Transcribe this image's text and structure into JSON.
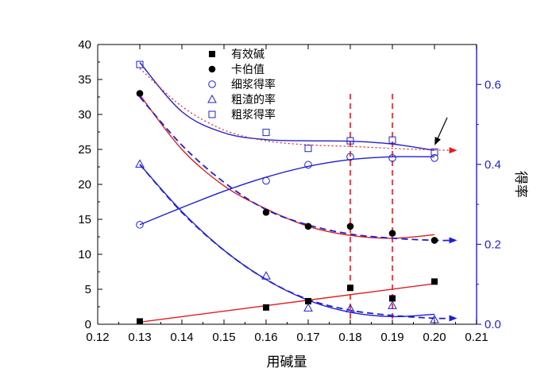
{
  "chart_data": {
    "type": "scatter",
    "xlabel": "用碱量",
    "ylabel_right": "得率",
    "xlim": [
      0.12,
      0.21
    ],
    "xticks": [
      "0.12",
      "0.13",
      "0.14",
      "0.15",
      "0.16",
      "0.17",
      "0.18",
      "0.19",
      "0.20",
      "0.21"
    ],
    "ylim_left": [
      0,
      40
    ],
    "yticks_left": [
      "0",
      "5",
      "10",
      "15",
      "20",
      "25",
      "30",
      "35",
      "40"
    ],
    "ylim_right": [
      0,
      0.7
    ],
    "yticks_right": [
      "0.0",
      "0.2",
      "0.4",
      "0.6"
    ],
    "vlines_x": [
      0.18,
      0.19
    ],
    "legend_position": "top-center",
    "colors": {
      "left_axis": "#000000",
      "right_axis": "#1f1fd6",
      "red": "#e01e1e",
      "blue": "#1f1fd6",
      "black": "#000000"
    },
    "series": [
      {
        "name": "有效碱",
        "axis": "left",
        "marker": "filled-square",
        "color": "#000000",
        "x": [
          0.13,
          0.16,
          0.17,
          0.18,
          0.19,
          0.2
        ],
        "y": [
          0.4,
          2.4,
          3.3,
          5.2,
          3.7,
          6.1
        ]
      },
      {
        "name": "卡伯值",
        "axis": "left",
        "marker": "filled-circle",
        "color": "#000000",
        "x": [
          0.13,
          0.16,
          0.17,
          0.18,
          0.19,
          0.2
        ],
        "y": [
          33.0,
          16.0,
          14.0,
          14.0,
          13.0,
          12.0
        ]
      },
      {
        "name": "细浆得率",
        "axis": "right",
        "marker": "open-circle",
        "color": "#1f1fd6",
        "x": [
          0.13,
          0.16,
          0.17,
          0.18,
          0.19,
          0.2
        ],
        "y": [
          0.249,
          0.359,
          0.399,
          0.419,
          0.416,
          0.416
        ]
      },
      {
        "name": "粗渣的率",
        "axis": "right",
        "marker": "open-triangle",
        "color": "#1f1fd6",
        "x": [
          0.13,
          0.16,
          0.17,
          0.18,
          0.19,
          0.2
        ],
        "y": [
          0.401,
          0.121,
          0.041,
          0.039,
          0.047,
          0.012
        ]
      },
      {
        "name": "粗浆得率",
        "axis": "right",
        "marker": "open-square",
        "color": "#1f1fd6",
        "x": [
          0.13,
          0.16,
          0.17,
          0.18,
          0.19,
          0.2
        ],
        "y": [
          0.65,
          0.48,
          0.44,
          0.459,
          0.461,
          0.431
        ]
      }
    ],
    "fit_curves": [
      {
        "axis": "left",
        "color": "#e01e1e",
        "style": "solid",
        "x": [
          0.13,
          0.2
        ],
        "y": [
          0.3,
          5.8
        ]
      },
      {
        "axis": "left",
        "color": "#e01e1e",
        "style": "solid",
        "x": [
          0.13,
          0.14,
          0.15,
          0.16,
          0.17,
          0.18,
          0.19,
          0.2
        ],
        "y": [
          32.8,
          25.0,
          19.8,
          16.5,
          14.0,
          12.7,
          12.3,
          12.8
        ]
      },
      {
        "axis": "left",
        "color": "#1f1fd6",
        "style": "dashed",
        "x": [
          0.13,
          0.14,
          0.15,
          0.16,
          0.17,
          0.18,
          0.19,
          0.2,
          0.205
        ],
        "y": [
          32.5,
          25.6,
          20.3,
          16.4,
          14.2,
          12.9,
          12.3,
          12.0,
          12.0
        ]
      },
      {
        "axis": "right",
        "color": "#1f1fd6",
        "style": "solid",
        "x": [
          0.13,
          0.14,
          0.15,
          0.16,
          0.17,
          0.18,
          0.19,
          0.2
        ],
        "y": [
          0.249,
          0.292,
          0.333,
          0.368,
          0.395,
          0.412,
          0.419,
          0.419
        ]
      },
      {
        "axis": "right",
        "color": "#1f1fd6",
        "style": "solid",
        "x": [
          0.13,
          0.14,
          0.15,
          0.16,
          0.17,
          0.18,
          0.19,
          0.2
        ],
        "y": [
          0.4,
          0.282,
          0.185,
          0.112,
          0.06,
          0.03,
          0.019,
          0.025
        ]
      },
      {
        "axis": "right",
        "color": "#1f1fd6",
        "style": "dashed",
        "x": [
          0.13,
          0.14,
          0.15,
          0.16,
          0.17,
          0.18,
          0.19,
          0.2,
          0.205
        ],
        "y": [
          0.4,
          0.28,
          0.185,
          0.112,
          0.062,
          0.035,
          0.022,
          0.015,
          0.015
        ]
      },
      {
        "axis": "right",
        "color": "#1f1fd6",
        "style": "solid",
        "x": [
          0.13,
          0.14,
          0.15,
          0.16,
          0.17,
          0.18,
          0.19,
          0.2
        ],
        "y": [
          0.655,
          0.532,
          0.479,
          0.462,
          0.459,
          0.458,
          0.451,
          0.435
        ]
      },
      {
        "axis": "right",
        "color": "#e01e1e",
        "style": "dotted",
        "x": [
          0.13,
          0.14,
          0.15,
          0.16,
          0.17,
          0.18,
          0.19,
          0.2,
          0.205
        ],
        "y": [
          0.64,
          0.545,
          0.486,
          0.459,
          0.449,
          0.445,
          0.44,
          0.436,
          0.435
        ]
      }
    ]
  }
}
